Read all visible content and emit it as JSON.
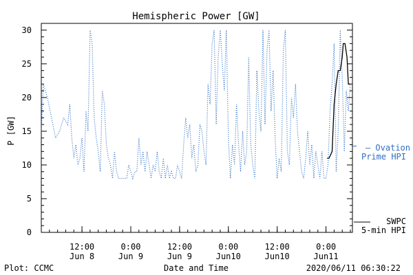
{
  "chart_data": {
    "type": "line",
    "title": "Hemispheric Power [GW]",
    "ylabel": "P [GW]",
    "xlabel": "Date and Time",
    "ylim": [
      0,
      31
    ],
    "yticks": [
      0,
      5,
      10,
      15,
      20,
      25,
      30
    ],
    "xlim": [
      "2020-06-08 02:00",
      "2020-06-11 06:30"
    ],
    "xticks": [
      {
        "time": "2020-06-08 12:00",
        "line1": "12:00",
        "line2": "Jun 8"
      },
      {
        "time": "2020-06-09 00:00",
        "line1": "0:00",
        "line2": "Jun 9"
      },
      {
        "time": "2020-06-09 12:00",
        "line1": "12:00",
        "line2": "Jun 9"
      },
      {
        "time": "2020-06-10 00:00",
        "line1": "0:00",
        "line2": "Jun10"
      },
      {
        "time": "2020-06-10 12:00",
        "line1": "12:00",
        "line2": "Jun10"
      },
      {
        "time": "2020-06-11 00:00",
        "line1": "0:00",
        "line2": "Jun11"
      }
    ],
    "series": [
      {
        "name": "Ovation Prime HPI",
        "color": "#2f6fc4",
        "style": "dotted",
        "points": [
          [
            "2020-06-08 02:00",
            15
          ],
          [
            "2020-06-08 02:30",
            22
          ],
          [
            "2020-06-08 03:30",
            20
          ],
          [
            "2020-06-08 04:30",
            17
          ],
          [
            "2020-06-08 05:30",
            14
          ],
          [
            "2020-06-08 06:30",
            15
          ],
          [
            "2020-06-08 07:30",
            17
          ],
          [
            "2020-06-08 08:30",
            16
          ],
          [
            "2020-06-08 09:00",
            19
          ],
          [
            "2020-06-08 09:30",
            14
          ],
          [
            "2020-06-08 10:00",
            11
          ],
          [
            "2020-06-08 10:30",
            13
          ],
          [
            "2020-06-08 11:00",
            10
          ],
          [
            "2020-06-08 11:30",
            11
          ],
          [
            "2020-06-08 12:00",
            14
          ],
          [
            "2020-06-08 12:30",
            9
          ],
          [
            "2020-06-08 13:00",
            18
          ],
          [
            "2020-06-08 13:30",
            15
          ],
          [
            "2020-06-08 14:00",
            30
          ],
          [
            "2020-06-08 14:30",
            28
          ],
          [
            "2020-06-08 15:00",
            17
          ],
          [
            "2020-06-08 15:30",
            14
          ],
          [
            "2020-06-08 16:00",
            12
          ],
          [
            "2020-06-08 16:30",
            9
          ],
          [
            "2020-06-08 17:00",
            21
          ],
          [
            "2020-06-08 17:30",
            19
          ],
          [
            "2020-06-08 18:00",
            13
          ],
          [
            "2020-06-08 18:30",
            11
          ],
          [
            "2020-06-08 19:00",
            10
          ],
          [
            "2020-06-08 19:30",
            8
          ],
          [
            "2020-06-08 20:00",
            12
          ],
          [
            "2020-06-08 20:30",
            9
          ],
          [
            "2020-06-08 21:00",
            8
          ],
          [
            "2020-06-08 22:00",
            8
          ],
          [
            "2020-06-08 23:00",
            8
          ],
          [
            "2020-06-08 23:30",
            10
          ],
          [
            "2020-06-09 00:00",
            9
          ],
          [
            "2020-06-09 00:30",
            8
          ],
          [
            "2020-06-09 01:00",
            9
          ],
          [
            "2020-06-09 01:30",
            9
          ],
          [
            "2020-06-09 02:00",
            14
          ],
          [
            "2020-06-09 02:30",
            10
          ],
          [
            "2020-06-09 03:00",
            12
          ],
          [
            "2020-06-09 03:30",
            9
          ],
          [
            "2020-06-09 04:00",
            12
          ],
          [
            "2020-06-09 04:30",
            10
          ],
          [
            "2020-06-09 05:00",
            8
          ],
          [
            "2020-06-09 05:30",
            10
          ],
          [
            "2020-06-09 06:00",
            9
          ],
          [
            "2020-06-09 06:30",
            12
          ],
          [
            "2020-06-09 07:00",
            9
          ],
          [
            "2020-06-09 07:30",
            8
          ],
          [
            "2020-06-09 08:00",
            11
          ],
          [
            "2020-06-09 08:30",
            8
          ],
          [
            "2020-06-09 09:00",
            10
          ],
          [
            "2020-06-09 09:30",
            8
          ],
          [
            "2020-06-09 10:00",
            9
          ],
          [
            "2020-06-09 10:30",
            8
          ],
          [
            "2020-06-09 11:00",
            8
          ],
          [
            "2020-06-09 11:30",
            10
          ],
          [
            "2020-06-09 12:00",
            9
          ],
          [
            "2020-06-09 12:30",
            8
          ],
          [
            "2020-06-09 13:00",
            13
          ],
          [
            "2020-06-09 13:30",
            17
          ],
          [
            "2020-06-09 14:00",
            14
          ],
          [
            "2020-06-09 14:30",
            16
          ],
          [
            "2020-06-09 15:00",
            11
          ],
          [
            "2020-06-09 15:30",
            13
          ],
          [
            "2020-06-09 16:00",
            9
          ],
          [
            "2020-06-09 16:30",
            10
          ],
          [
            "2020-06-09 17:00",
            16
          ],
          [
            "2020-06-09 17:30",
            15
          ],
          [
            "2020-06-09 18:00",
            12
          ],
          [
            "2020-06-09 18:30",
            10
          ],
          [
            "2020-06-09 19:00",
            22
          ],
          [
            "2020-06-09 19:30",
            19
          ],
          [
            "2020-06-09 20:00",
            28
          ],
          [
            "2020-06-09 20:30",
            30
          ],
          [
            "2020-06-09 21:00",
            16
          ],
          [
            "2020-06-09 21:30",
            26
          ],
          [
            "2020-06-09 22:00",
            30
          ],
          [
            "2020-06-09 22:30",
            25
          ],
          [
            "2020-06-09 23:00",
            21
          ],
          [
            "2020-06-09 23:30",
            30
          ],
          [
            "2020-06-10 00:00",
            14
          ],
          [
            "2020-06-10 00:30",
            8
          ],
          [
            "2020-06-10 01:00",
            13
          ],
          [
            "2020-06-10 01:30",
            10
          ],
          [
            "2020-06-10 02:00",
            19
          ],
          [
            "2020-06-10 02:30",
            13
          ],
          [
            "2020-06-10 03:00",
            9
          ],
          [
            "2020-06-10 03:30",
            15
          ],
          [
            "2020-06-10 04:00",
            10
          ],
          [
            "2020-06-10 04:30",
            12
          ],
          [
            "2020-06-10 05:00",
            26
          ],
          [
            "2020-06-10 05:30",
            13
          ],
          [
            "2020-06-10 06:00",
            10
          ],
          [
            "2020-06-10 06:30",
            8
          ],
          [
            "2020-06-10 07:00",
            24
          ],
          [
            "2020-06-10 07:30",
            18
          ],
          [
            "2020-06-10 08:00",
            15
          ],
          [
            "2020-06-10 08:30",
            30
          ],
          [
            "2020-06-10 09:00",
            16
          ],
          [
            "2020-06-10 09:30",
            27
          ],
          [
            "2020-06-10 10:00",
            30
          ],
          [
            "2020-06-10 10:30",
            18
          ],
          [
            "2020-06-10 11:00",
            24
          ],
          [
            "2020-06-10 11:30",
            14
          ],
          [
            "2020-06-10 12:00",
            8
          ],
          [
            "2020-06-10 12:30",
            11
          ],
          [
            "2020-06-10 13:00",
            9
          ],
          [
            "2020-06-10 13:30",
            27
          ],
          [
            "2020-06-10 14:00",
            30
          ],
          [
            "2020-06-10 14:30",
            12
          ],
          [
            "2020-06-10 15:00",
            10
          ],
          [
            "2020-06-10 15:30",
            20
          ],
          [
            "2020-06-10 16:00",
            17
          ],
          [
            "2020-06-10 16:30",
            22
          ],
          [
            "2020-06-10 17:00",
            15
          ],
          [
            "2020-06-10 17:30",
            12
          ],
          [
            "2020-06-10 18:00",
            9
          ],
          [
            "2020-06-10 18:30",
            8
          ],
          [
            "2020-06-10 19:00",
            11
          ],
          [
            "2020-06-10 19:30",
            15
          ],
          [
            "2020-06-10 20:00",
            10
          ],
          [
            "2020-06-10 20:30",
            13
          ],
          [
            "2020-06-10 21:00",
            8
          ],
          [
            "2020-06-10 21:30",
            12
          ],
          [
            "2020-06-10 22:00",
            10
          ],
          [
            "2020-06-10 22:30",
            8
          ],
          [
            "2020-06-10 23:00",
            12
          ],
          [
            "2020-06-10 23:30",
            8
          ],
          [
            "2020-06-11 00:00",
            8
          ],
          [
            "2020-06-11 00:30",
            10
          ],
          [
            "2020-06-11 01:00",
            18
          ],
          [
            "2020-06-11 01:30",
            22
          ],
          [
            "2020-06-11 02:00",
            28
          ],
          [
            "2020-06-11 02:30",
            9
          ],
          [
            "2020-06-11 03:00",
            15
          ],
          [
            "2020-06-11 03:30",
            30
          ],
          [
            "2020-06-11 04:00",
            23
          ],
          [
            "2020-06-11 04:30",
            12
          ],
          [
            "2020-06-11 05:00",
            21
          ],
          [
            "2020-06-11 05:30",
            18
          ],
          [
            "2020-06-11 06:00",
            22
          ]
        ]
      },
      {
        "name": "SWPC 5-min HPI",
        "color": "#000000",
        "style": "solid",
        "points": [
          [
            "2020-06-11 00:15",
            11
          ],
          [
            "2020-06-11 00:45",
            11
          ],
          [
            "2020-06-11 01:30",
            12
          ],
          [
            "2020-06-11 02:00",
            19
          ],
          [
            "2020-06-11 02:30",
            22
          ],
          [
            "2020-06-11 03:00",
            24
          ],
          [
            "2020-06-11 03:30",
            24
          ],
          [
            "2020-06-11 04:00",
            26
          ],
          [
            "2020-06-11 04:15",
            28
          ],
          [
            "2020-06-11 04:40",
            28
          ],
          [
            "2020-06-11 05:10",
            26
          ],
          [
            "2020-06-11 05:30",
            22
          ],
          [
            "2020-06-11 06:00",
            22
          ]
        ]
      }
    ],
    "legend": [
      {
        "line1": "— Ovation",
        "line2": "Prime HPI",
        "color": "#2f6fc4",
        "placement": "right-middle"
      },
      {
        "line1": "SWPC",
        "line2": "5-min HPI",
        "color": "#000000",
        "placement": "right-bottom"
      }
    ]
  },
  "footer": {
    "plot_credit": "Plot: CCMC",
    "timestamp": "2020/06/11 06:30:22"
  }
}
